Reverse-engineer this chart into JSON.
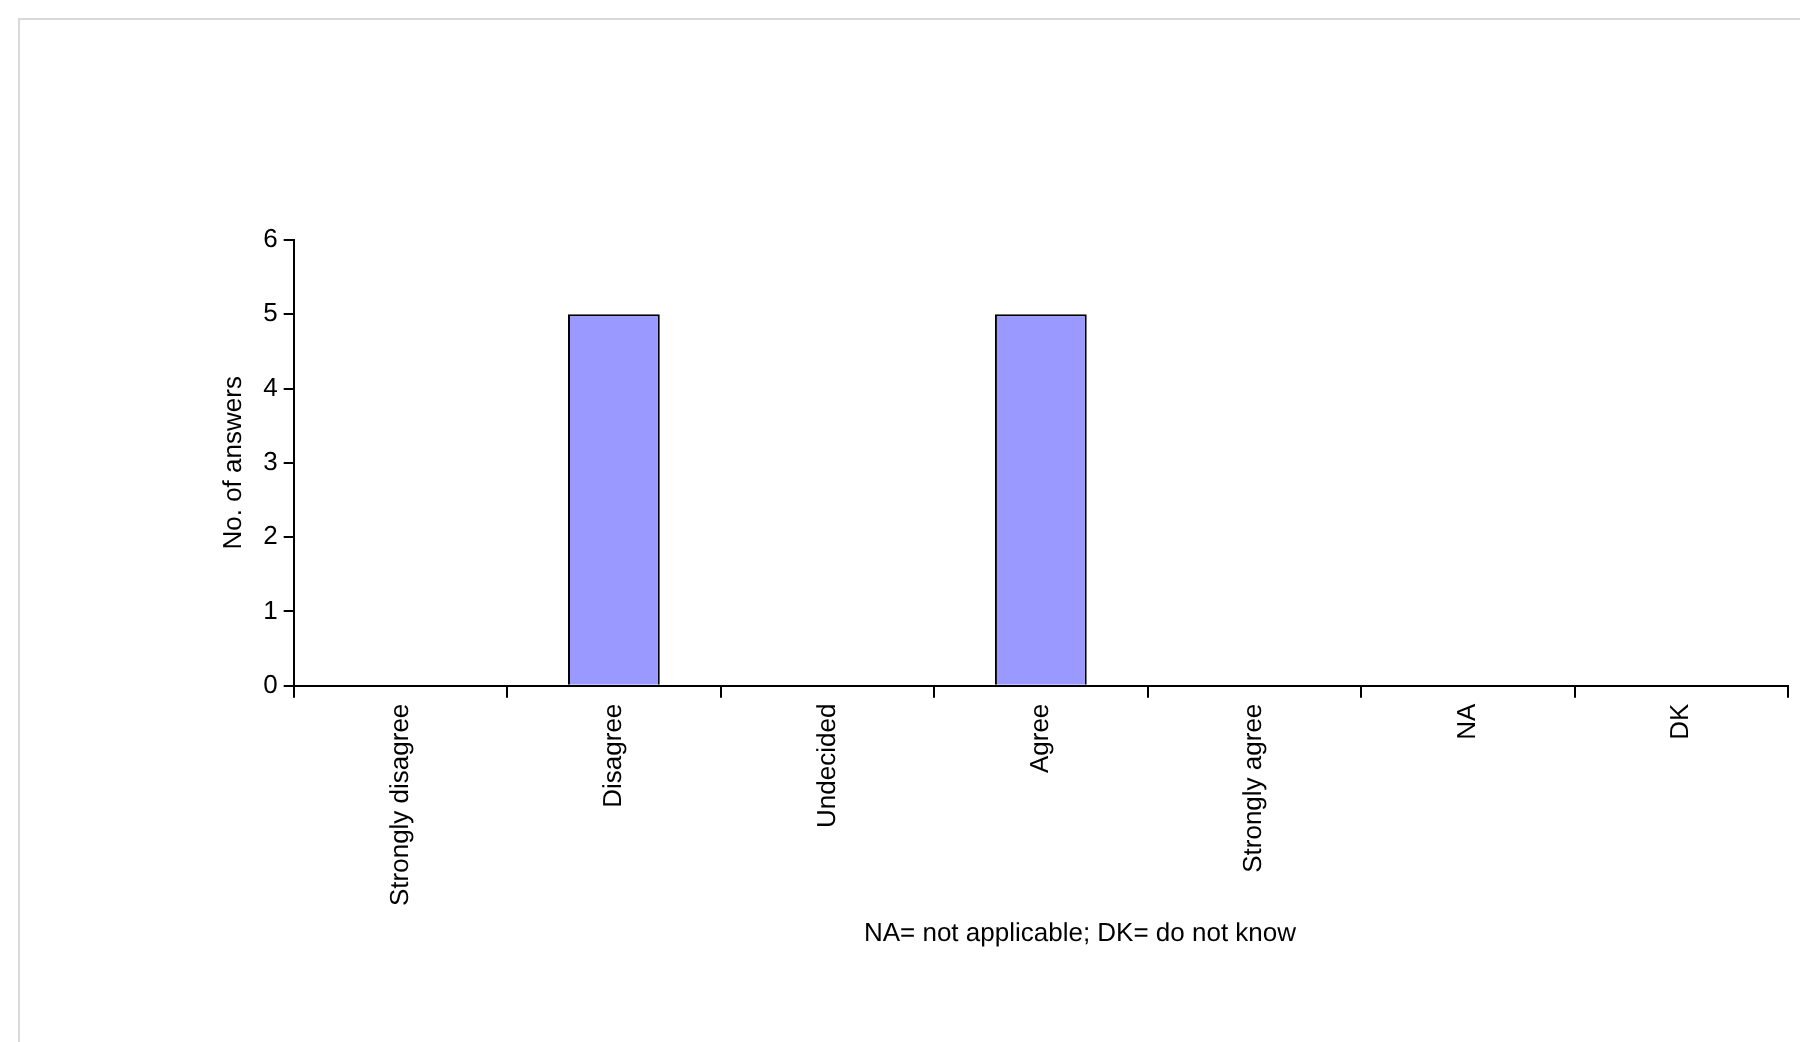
{
  "chart_data": {
    "type": "bar",
    "categories": [
      "Strongly disagree",
      "Disagree",
      "Undecided",
      "Agree",
      "Strongly agree",
      "NA",
      "DK"
    ],
    "values": [
      0,
      5,
      0,
      5,
      0,
      0,
      0
    ],
    "color": "#9999ff",
    "ylabel": "No. of answers",
    "ylim": [
      0,
      6
    ],
    "yticks": [
      0,
      1,
      2,
      3,
      4,
      5,
      6
    ],
    "annotations": [
      "NA= not applicable; DK= do not know"
    ]
  }
}
